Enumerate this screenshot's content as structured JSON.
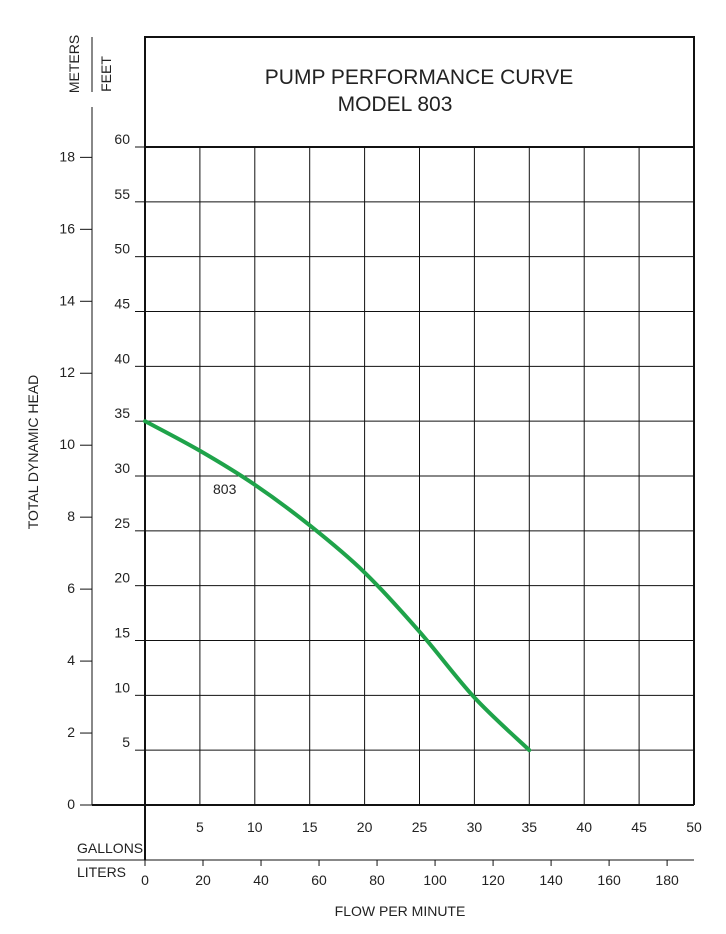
{
  "chart_data": {
    "type": "line",
    "title": "PUMP PERFORMANCE CURVE",
    "subtitle": "MODEL 803",
    "xlabel": "FLOW PER MINUTE",
    "ylabel": "TOTAL DYNAMIC HEAD",
    "feet_label": "FEET",
    "meters_label": "METERS",
    "gallons_label": "GALLONS",
    "liters_label": "LITERS",
    "xlim": [
      0,
      50
    ],
    "ylim": [
      0,
      60
    ],
    "grid": true,
    "x_gallons_ticks": [
      "5",
      "10",
      "15",
      "20",
      "25",
      "30",
      "35",
      "40",
      "45",
      "50"
    ],
    "x_liters_ticks": [
      "0",
      "20",
      "40",
      "60",
      "80",
      "100",
      "120",
      "140",
      "160",
      "180"
    ],
    "y_feet_ticks": [
      "5",
      "10",
      "15",
      "20",
      "25",
      "30",
      "35",
      "40",
      "45",
      "50",
      "55",
      "60"
    ],
    "y_meters_ticks": [
      "0",
      "2",
      "4",
      "6",
      "8",
      "10",
      "12",
      "14",
      "16",
      "18"
    ],
    "series": [
      {
        "name": "803",
        "color": "#1fa34a",
        "x": [
          0,
          5,
          10,
          15,
          20,
          25,
          30,
          35
        ],
        "y": [
          35,
          32.3,
          29.2,
          25.5,
          21.2,
          15.8,
          9.8,
          5
        ]
      }
    ]
  }
}
